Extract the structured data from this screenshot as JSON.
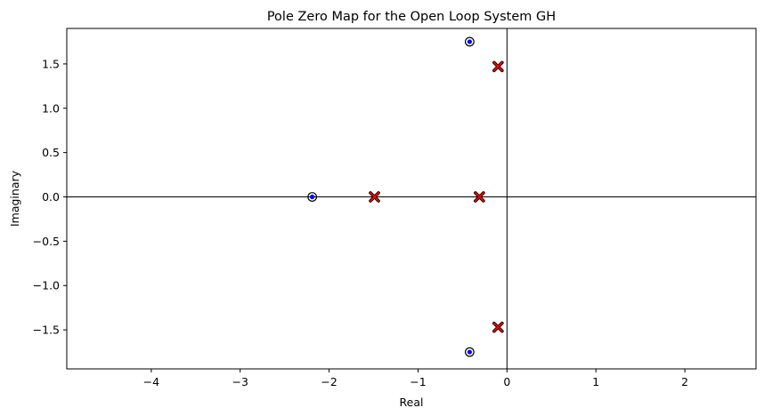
{
  "chart_data": {
    "type": "scatter",
    "title": "Pole Zero Map for the Open Loop System GH",
    "xlabel": "Real",
    "ylabel": "Imaginary",
    "xlim": [
      -4.95,
      2.8
    ],
    "ylim": [
      -1.94,
      1.9
    ],
    "xticks": [
      -4,
      -3,
      -2,
      -1,
      0,
      1,
      2
    ],
    "xtick_labels": [
      "−4",
      "−3",
      "−2",
      "−1",
      "0",
      "1",
      "2"
    ],
    "yticks": [
      -1.5,
      -1.0,
      -0.5,
      0.0,
      0.5,
      1.0,
      1.5
    ],
    "ytick_labels": [
      "−1.5",
      "−1.0",
      "−0.5",
      "0.0",
      "0.5",
      "1.0",
      "1.5"
    ],
    "grid": false,
    "zeros": [
      {
        "x": -2.19,
        "y": 0.0
      },
      {
        "x": -0.42,
        "y": 1.75
      },
      {
        "x": -0.42,
        "y": -1.75
      }
    ],
    "poles": [
      {
        "x": -1.49,
        "y": 0.0
      },
      {
        "x": -0.31,
        "y": 0.0
      },
      {
        "x": -0.1,
        "y": 1.47
      },
      {
        "x": -0.1,
        "y": -1.47
      }
    ],
    "colors": {
      "zero_fill": "#0000ff",
      "zero_ring": "#000000",
      "pole_fill": "#ff0000",
      "pole_edge": "#000000",
      "axis_line": "#000000"
    }
  }
}
